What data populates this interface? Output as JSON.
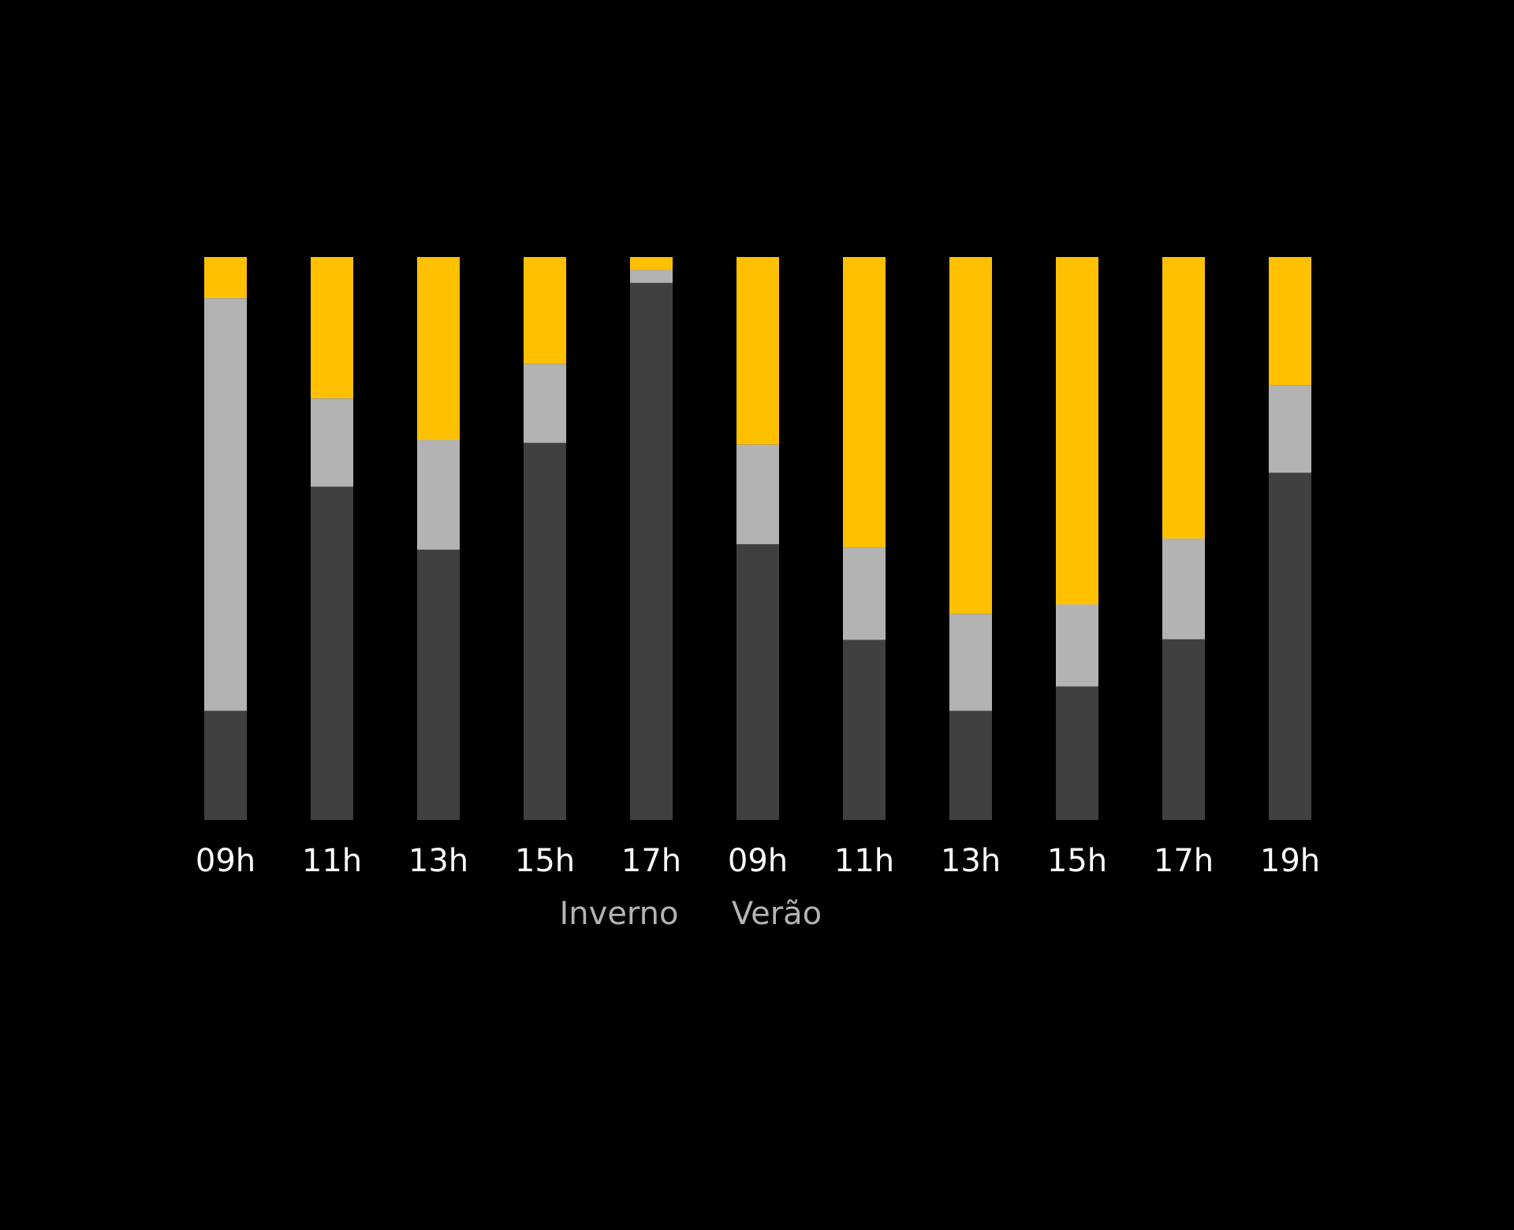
{
  "chart_data": {
    "type": "bar",
    "stacked": true,
    "normalized_to": 100,
    "title": "",
    "xlabel": "",
    "ylabel": "",
    "ylim": [
      0,
      100
    ],
    "grid": false,
    "legend": "none",
    "categories": [
      "09h",
      "11h",
      "13h",
      "15h",
      "17h",
      "09h",
      "11h",
      "13h",
      "15h",
      "17h",
      "19h"
    ],
    "groups": [
      {
        "label": "Inverno",
        "categories": [
          "09h",
          "11h",
          "13h",
          "15h",
          "17h"
        ]
      },
      {
        "label": "Verão",
        "categories": [
          "09h",
          "11h",
          "13h",
          "15h",
          "17h",
          "19h"
        ]
      }
    ],
    "series": [
      {
        "color": "#404040",
        "values": [
          19.4,
          59.2,
          48.0,
          67.0,
          95.4,
          49.0,
          32.0,
          19.4,
          23.7,
          32.1,
          61.7
        ]
      },
      {
        "color": "#b3b3b3",
        "values": [
          73.3,
          15.7,
          19.5,
          14.0,
          2.3,
          17.7,
          16.4,
          17.2,
          14.6,
          17.9,
          15.5
        ]
      },
      {
        "color": "#ffc000",
        "values": [
          7.3,
          25.1,
          32.5,
          19.0,
          2.3,
          33.3,
          51.6,
          63.4,
          61.7,
          50.0,
          22.8
        ]
      }
    ]
  },
  "colors": {
    "background": "#000000",
    "tick_label": "#ffffff",
    "group_label": "#b3b3b3"
  }
}
